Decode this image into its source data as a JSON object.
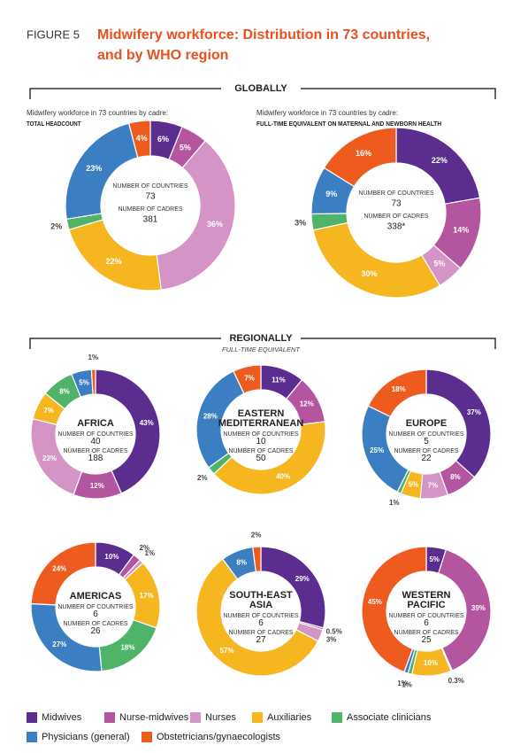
{
  "header": {
    "figure": "FIGURE 5",
    "title": [
      "Midwifery workforce: Distribution in 73 countries,",
      "and by WHO region"
    ]
  },
  "sections": [
    "GLOBALLY",
    "REGIONALLY"
  ],
  "regional_note": "FULL-TIME EQUIVALENT",
  "legend": {
    "categories": [
      "Midwives",
      "Nurse-midwives",
      "Nurses",
      "Auxiliaries",
      "Associate clinicians",
      "Physicians (general)",
      "Obstetricians/gynaecologists"
    ],
    "colors": [
      "#5a2d8e",
      "#b3569f",
      "#d494c5",
      "#f6b620",
      "#4fb36a",
      "#3b7fc2",
      "#ee5b1f"
    ]
  },
  "chart_data": [
    {
      "type": "pie",
      "caption": "Midwifery workforce in 73 countries by cadre:",
      "caption_bold": "TOTAL HEADCOUNT",
      "countries_label": "NUMBER OF COUNTRIES",
      "countries": 73,
      "cadres_label": "NUMBER OF CADRES",
      "cadres": 381,
      "values": [
        6,
        5,
        36,
        22,
        2,
        23,
        4
      ],
      "value_labels": [
        "6%",
        "5%",
        "36%",
        "22%",
        "2%",
        "23%",
        "4%"
      ]
    },
    {
      "type": "pie",
      "caption": "Midwifery workforce in 73 countries by cadre:",
      "caption_bold": "FULL-TIME EQUIVALENT ON MATERNAL AND NEWBORN HEALTH",
      "countries_label": "NUMBER OF COUNTRIES",
      "countries": 73,
      "cadres_label": "NUMBER OF CADRES",
      "cadres": {
        "value": 338,
        "label": "338*"
      },
      "values": [
        22,
        14,
        5,
        30,
        3,
        9,
        16
      ],
      "value_labels": [
        "22%",
        "14%",
        "5%",
        "30%",
        "3%",
        "9%",
        "16%"
      ]
    },
    {
      "type": "pie",
      "title": [
        "AFRICA"
      ],
      "countries_label": "NUMBER OF COUNTRIES",
      "countries": 40,
      "cadres_label": "NUMBER OF CADRES",
      "cadres": 188,
      "values": [
        43,
        12,
        23,
        7,
        8,
        5,
        1
      ],
      "value_labels": [
        "43%",
        "12%",
        "23%",
        "7%",
        "8%",
        "5%",
        "1%"
      ]
    },
    {
      "type": "pie",
      "title": [
        "EASTERN",
        "MEDITERRANEAN"
      ],
      "countries_label": "NUMBER OF COUNTRIES",
      "countries": 10,
      "cadres_label": "NUMBER OF CADRES",
      "cadres": 50,
      "values": [
        11,
        12,
        null,
        40,
        2,
        28,
        7
      ],
      "value_labels": [
        "11%",
        "12%",
        null,
        "40%",
        "2%",
        "28%",
        "7%"
      ]
    },
    {
      "type": "pie",
      "title": [
        "EUROPE"
      ],
      "countries_label": "NUMBER OF COUNTRIES",
      "countries": 5,
      "cadres_label": "NUMBER OF CADRES",
      "cadres": 22,
      "values": [
        37,
        8,
        7,
        5,
        1,
        25,
        18
      ],
      "value_labels": [
        "37%",
        "8%",
        "7%",
        "5%",
        "1%",
        "25%",
        "18%"
      ]
    },
    {
      "type": "pie",
      "title": [
        "AMERICAS"
      ],
      "countries_label": "NUMBER OF COUNTRIES",
      "countries": 6,
      "cadres_label": "NUMBER OF CADRES",
      "cadres": 26,
      "values": [
        10,
        2,
        1,
        17,
        18,
        27,
        24
      ],
      "value_labels": [
        "10%",
        "2%",
        "1%",
        "17%",
        "18%",
        "27%",
        "24%"
      ]
    },
    {
      "type": "pie",
      "title": [
        "SOUTH-EAST",
        "ASIA"
      ],
      "countries_label": "NUMBER OF COUNTRIES",
      "countries": 6,
      "cadres_label": "NUMBER OF CADRES",
      "cadres": 27,
      "values": [
        29,
        0.5,
        3,
        57,
        null,
        8,
        2
      ],
      "value_labels": [
        "29%",
        "0.5%",
        "3%",
        "57%",
        null,
        "8%",
        "2%"
      ]
    },
    {
      "type": "pie",
      "title": [
        "WESTERN",
        "PACIFIC"
      ],
      "countries_label": "NUMBER OF COUNTRIES",
      "countries": 6,
      "cadres_label": "NUMBER OF CADRES",
      "cadres": 25,
      "values": [
        5,
        39,
        0.3,
        10,
        1,
        1,
        45
      ],
      "value_labels": [
        "5%",
        "39%",
        "0.3%",
        "10%",
        "1%",
        "1%",
        "45%"
      ]
    }
  ]
}
